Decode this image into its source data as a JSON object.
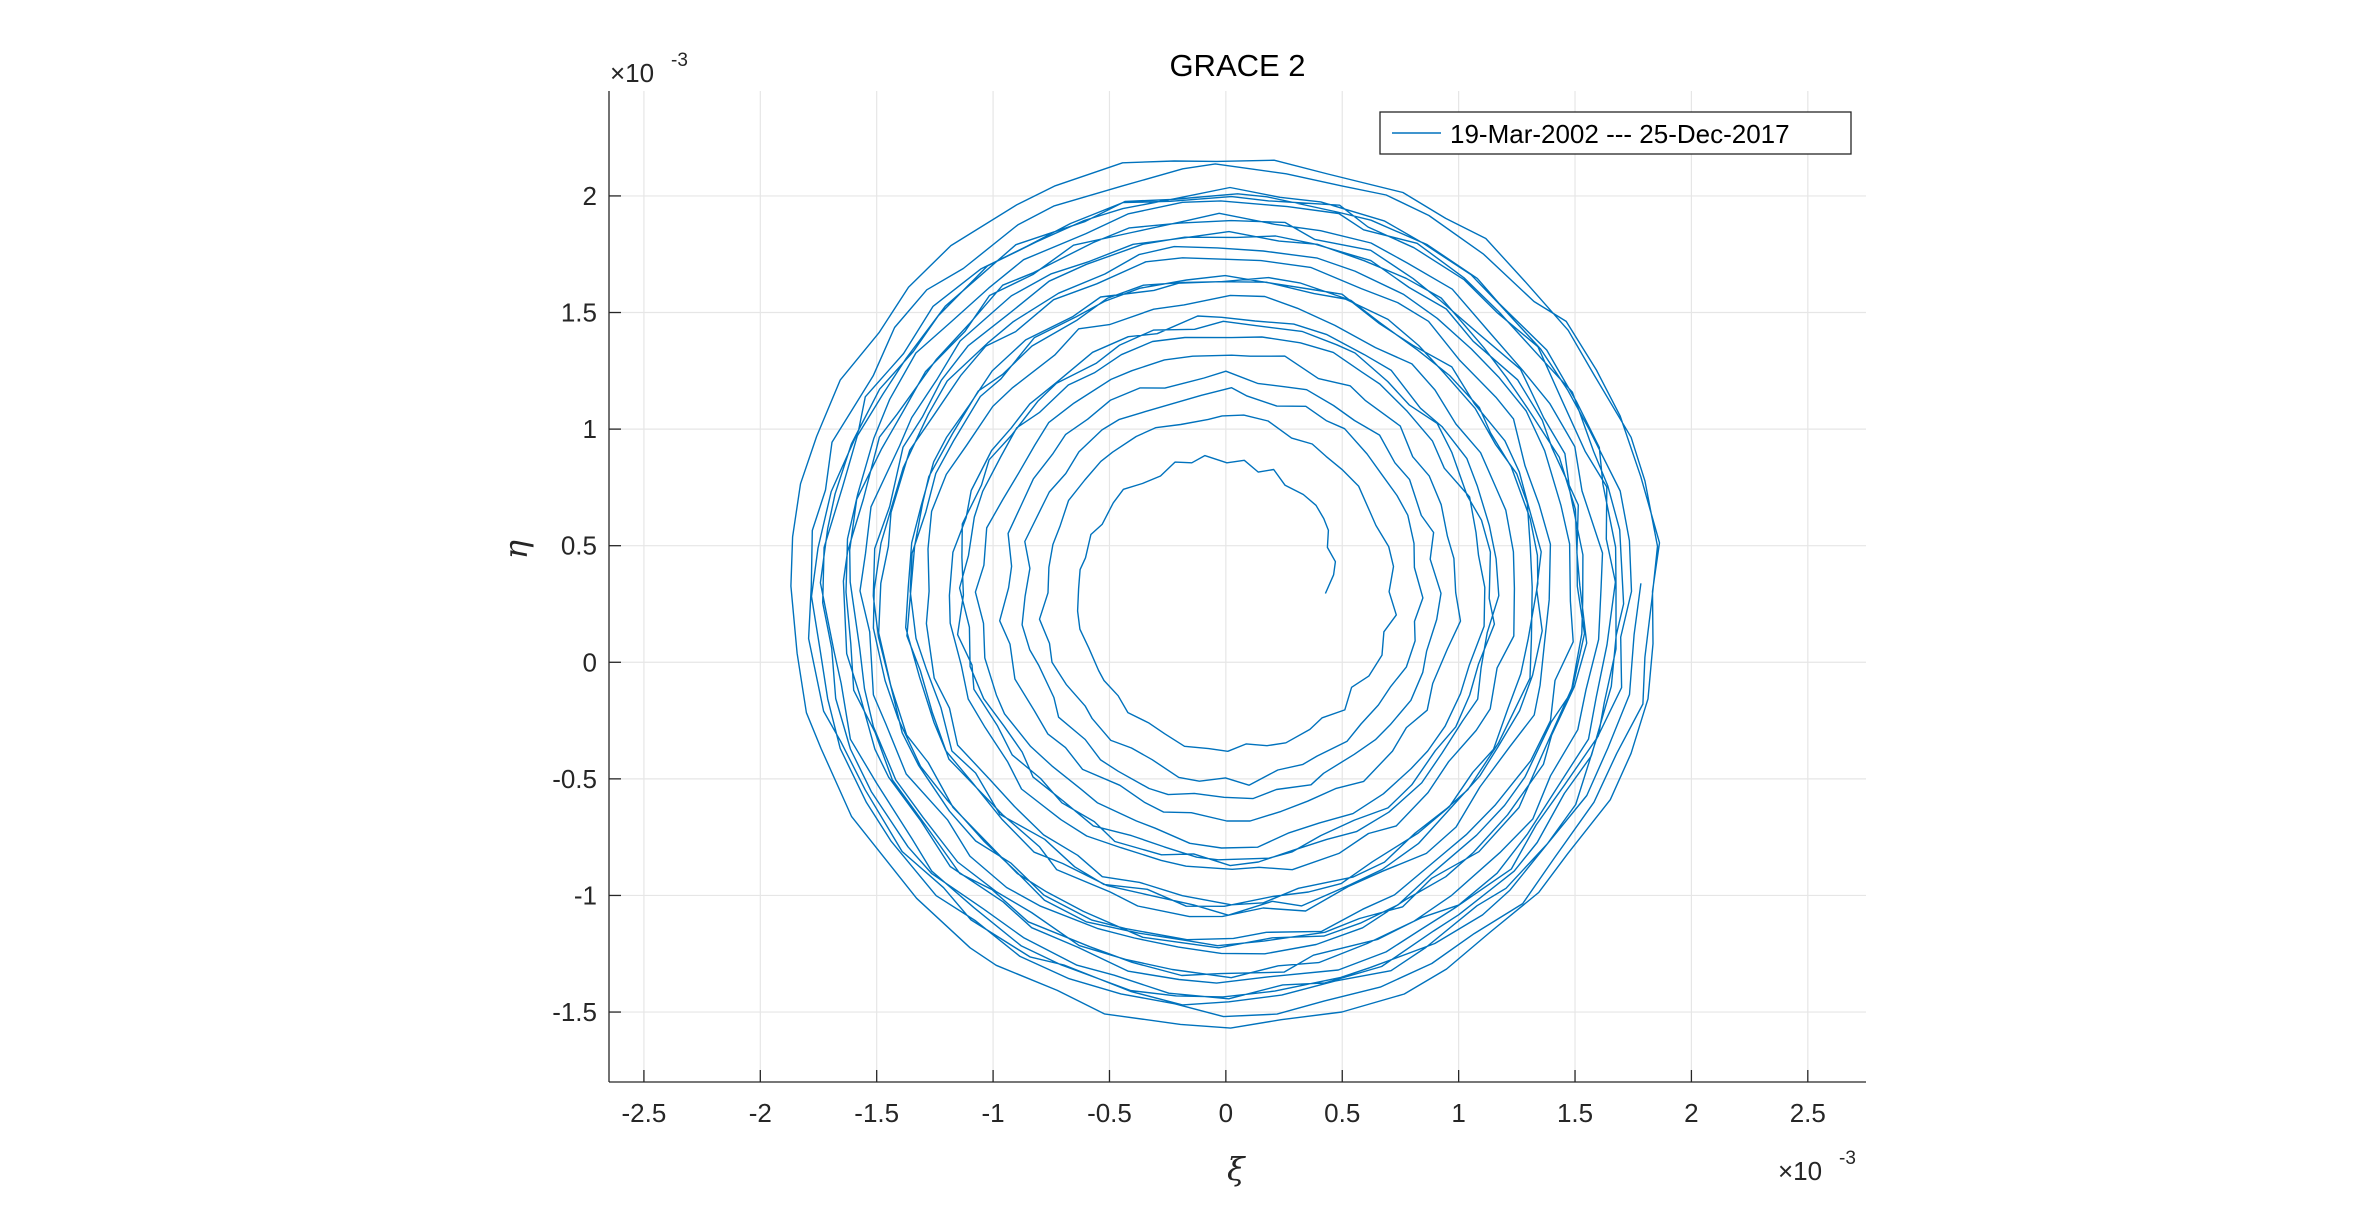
{
  "chart_data": {
    "type": "line",
    "title": "GRACE 2",
    "xlabel": "ξ",
    "ylabel": "η",
    "x_exponent": "×10",
    "y_exponent": "×10",
    "exponent_power": "-3",
    "xlim": [
      -2.65,
      2.75
    ],
    "ylim": [
      -1.8,
      2.45
    ],
    "x_ticks": [
      -2.5,
      -2,
      -1.5,
      -1,
      -0.5,
      0,
      0.5,
      1,
      1.5,
      2,
      2.5
    ],
    "x_tick_labels": [
      "-2.5",
      "-2",
      "-1.5",
      "-1",
      "-0.5",
      "0",
      "0.5",
      "1",
      "1.5",
      "2",
      "2.5"
    ],
    "y_ticks": [
      -1.5,
      -1,
      -0.5,
      0,
      0.5,
      1,
      1.5,
      2
    ],
    "y_tick_labels": [
      "-1.5",
      "-1",
      "-0.5",
      "0",
      "0.5",
      "1",
      "1.5",
      "2"
    ],
    "grid": true,
    "legend_position": "top-right",
    "series": [
      {
        "name": "19-Mar-2002 --- 25-Dec-2017",
        "color": "#0072BD",
        "center": [
          0.0,
          0.3
        ],
        "radius_start": 0.42,
        "radius_end": 1.85,
        "turns": 24,
        "points_per_turn": 48
      }
    ]
  }
}
